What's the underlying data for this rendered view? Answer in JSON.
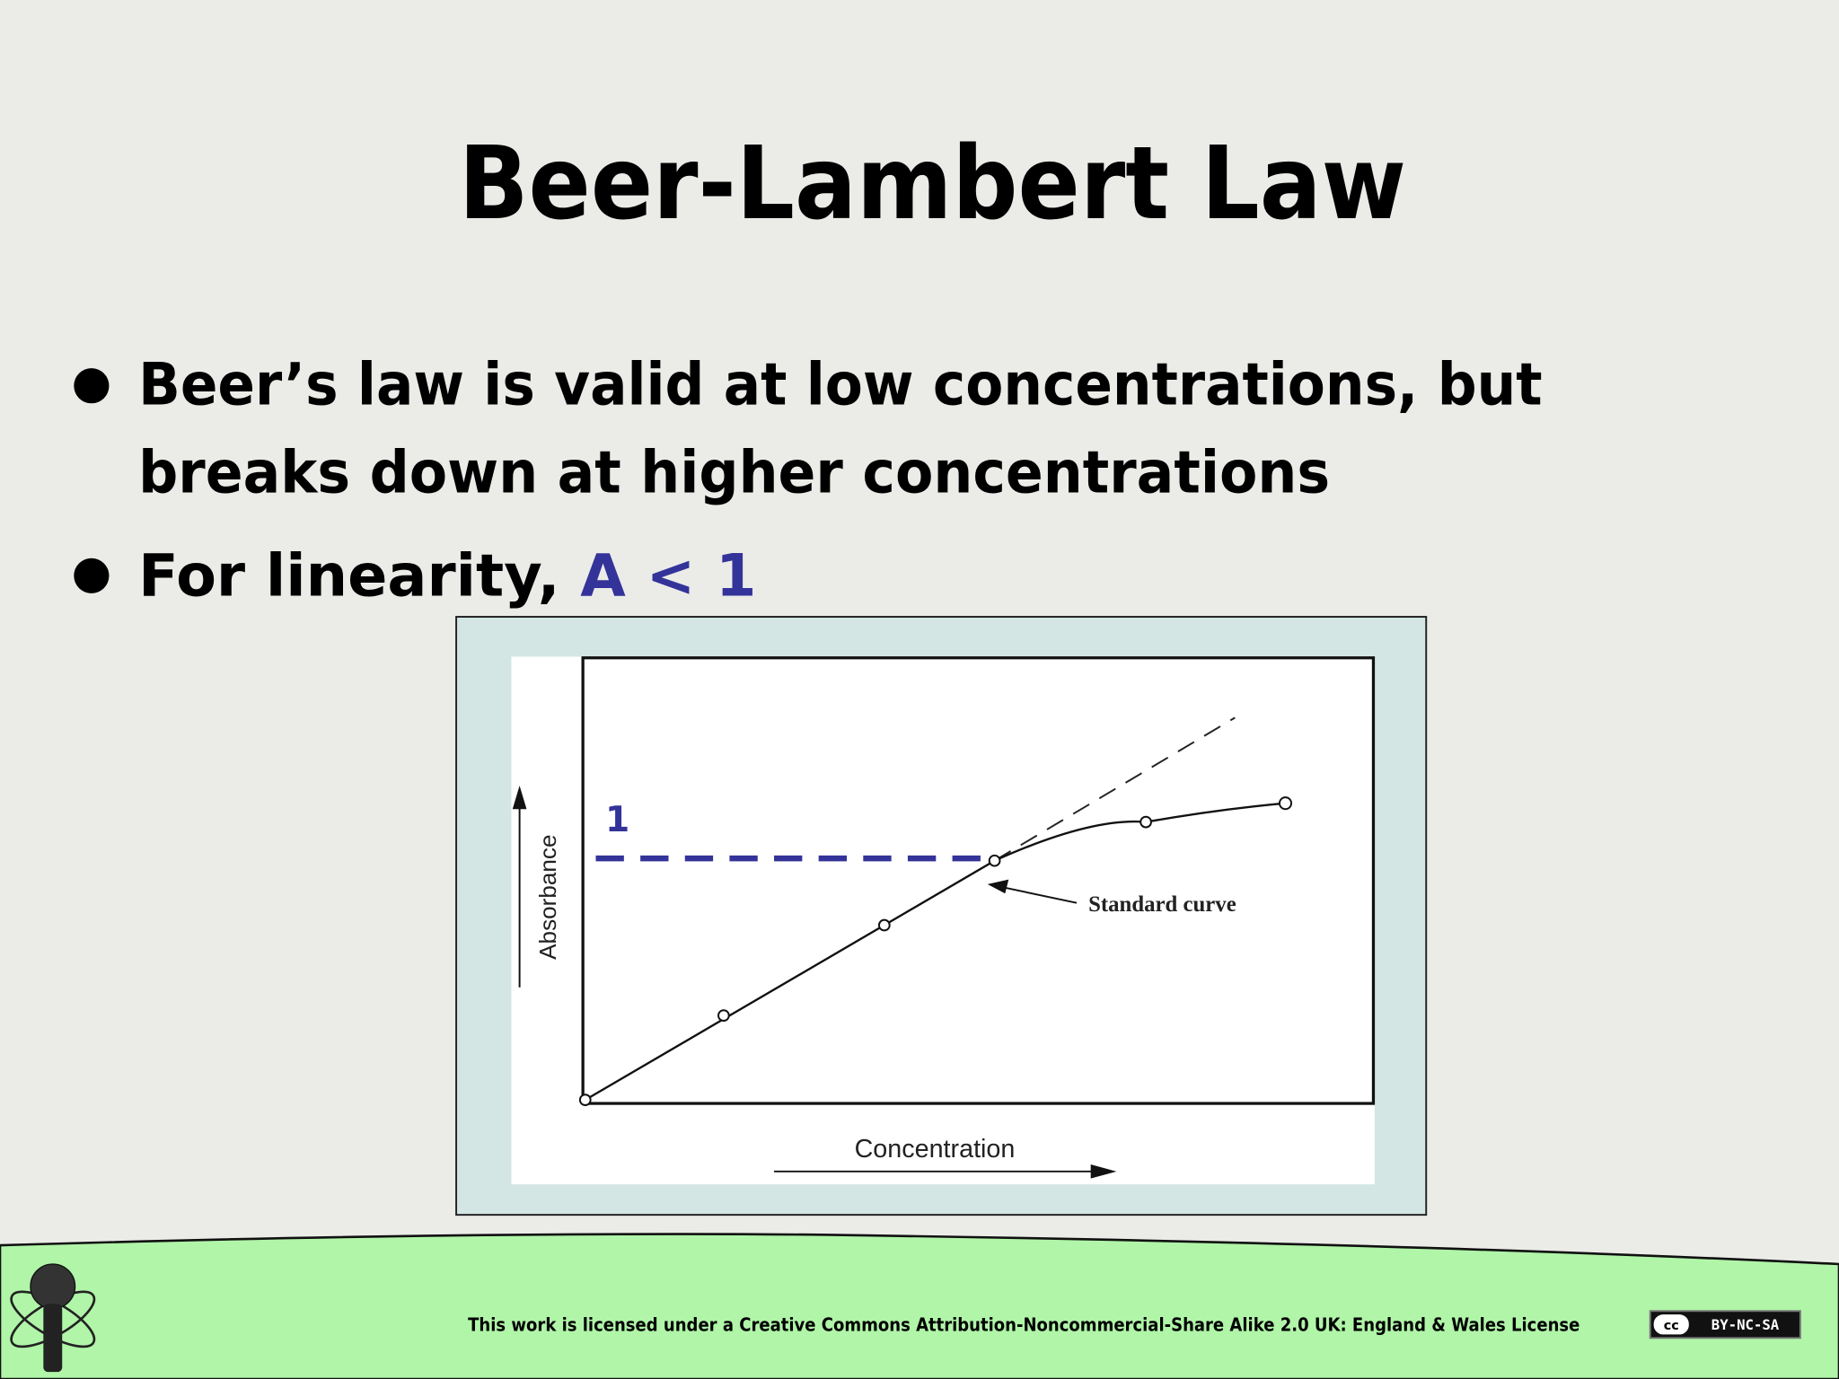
{
  "slide": {
    "title": "Beer-Lambert Law",
    "bullets": [
      {
        "lines": [
          "Beer’s law is valid at low concentrations, but",
          "breaks down at higher concentrations"
        ]
      },
      {
        "text": "For linearity, ",
        "highlight": "A < 1"
      }
    ]
  },
  "figure": {
    "threshold_label": "1",
    "y_axis_label": "Absorbance",
    "x_axis_label": "Concentration",
    "annotation": "Standard curve"
  },
  "footer": {
    "license": "This work is licensed under a Creative Commons Attribution-Noncommercial-Share Alike 2.0 UK: England & Wales License",
    "badge_cc": "cc",
    "badge": "BY-NC-SA"
  }
}
